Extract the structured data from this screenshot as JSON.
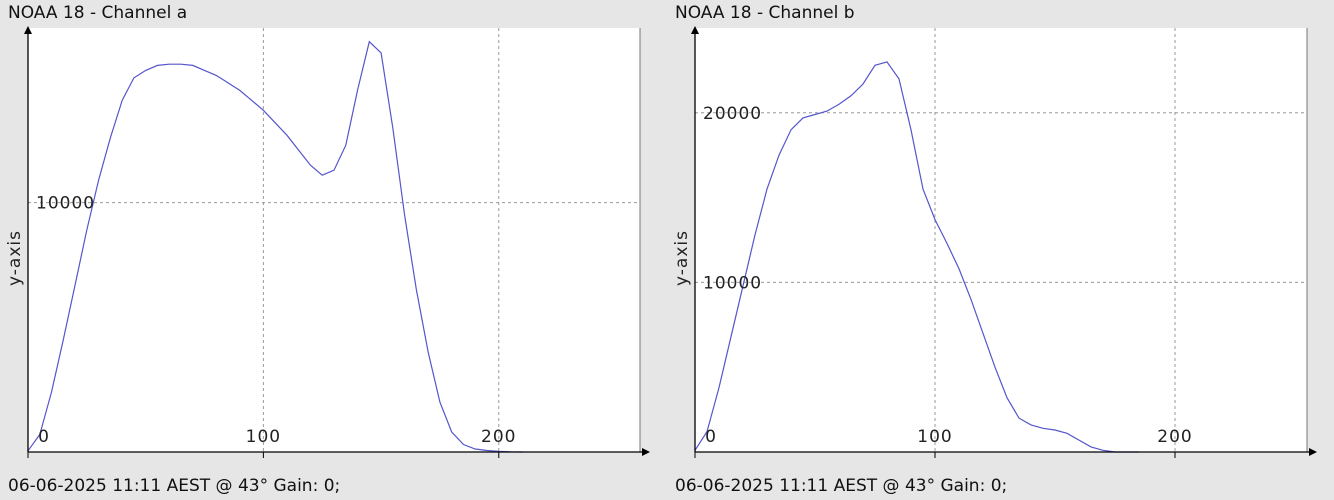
{
  "chart_data": [
    {
      "type": "line",
      "title": "NOAA 18 - Channel a",
      "footer": "06-06-2025 11:11 AEST @ 43° Gain: 0;",
      "ylabel": "y-axis",
      "xlabel": "",
      "xlim": [
        0,
        260
      ],
      "ylim": [
        0,
        17000
      ],
      "xticks": [
        0,
        100,
        200
      ],
      "yticks": [
        10000
      ],
      "grid": true,
      "line_color": "#5555cc",
      "series": [
        {
          "x": [
            0,
            5,
            10,
            15,
            20,
            25,
            30,
            35,
            40,
            45,
            50,
            55,
            60,
            65,
            70,
            75,
            80,
            85,
            90,
            95,
            100,
            105,
            110,
            115,
            120,
            125,
            130,
            135,
            140,
            145,
            150,
            155,
            160,
            165,
            170,
            175,
            180,
            185,
            190,
            195,
            200,
            205,
            210
          ],
          "values": [
            50,
            700,
            2400,
            4500,
            6700,
            8900,
            10900,
            12600,
            14100,
            15000,
            15300,
            15500,
            15550,
            15550,
            15500,
            15300,
            15100,
            14800,
            14500,
            14100,
            13700,
            13200,
            12700,
            12100,
            11500,
            11100,
            11300,
            12300,
            14500,
            16450,
            16000,
            13000,
            9500,
            6500,
            4000,
            2000,
            800,
            300,
            120,
            60,
            30,
            10,
            0
          ]
        }
      ]
    },
    {
      "type": "line",
      "title": "NOAA 18 - Channel b",
      "footer": "06-06-2025 11:11 AEST @ 43° Gain: 0;",
      "ylabel": "y-axis",
      "xlabel": "",
      "xlim": [
        0,
        255
      ],
      "ylim": [
        0,
        25000
      ],
      "xticks": [
        0,
        100,
        200
      ],
      "yticks": [
        10000,
        20000
      ],
      "grid": true,
      "line_color": "#5555cc",
      "series": [
        {
          "x": [
            0,
            5,
            10,
            15,
            20,
            25,
            30,
            35,
            40,
            45,
            50,
            55,
            60,
            65,
            70,
            75,
            80,
            85,
            90,
            95,
            100,
            105,
            110,
            115,
            120,
            125,
            130,
            135,
            140,
            145,
            150,
            155,
            160,
            165,
            170,
            175,
            180,
            185
          ],
          "values": [
            100,
            1200,
            3800,
            6800,
            9800,
            12800,
            15500,
            17500,
            19000,
            19700,
            19900,
            20100,
            20500,
            21000,
            21700,
            22800,
            23000,
            22000,
            19000,
            15500,
            13700,
            12300,
            10800,
            9000,
            7000,
            5000,
            3200,
            2000,
            1600,
            1400,
            1300,
            1100,
            700,
            300,
            100,
            0,
            0,
            0
          ]
        }
      ]
    }
  ]
}
